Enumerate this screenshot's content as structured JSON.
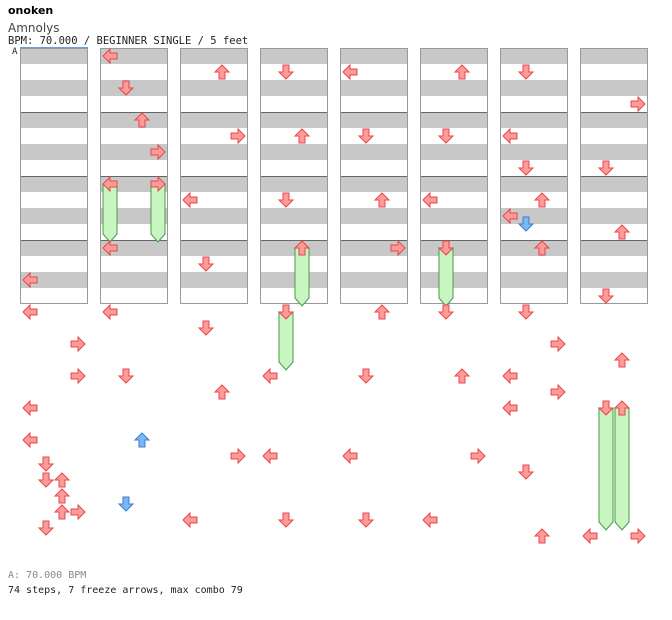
{
  "header": {
    "artist": "onoken",
    "title": "Amnolys",
    "info": "BPM: 70.000 / BEGINNER SINGLE / 5 feet",
    "bpm_marker_label": "A"
  },
  "footer": {
    "bpm_line": "A: 70.000 BPM",
    "stats": "74 steps, 7 freeze arrows, max combo 79"
  },
  "colors": {
    "stripe": "#c8c8c8",
    "border": "#999999",
    "arrow_red": "#ff9a9a",
    "arrow_red_stroke": "#e04848",
    "arrow_blue": "#7ab8f2",
    "arrow_blue_stroke": "#3c7cd0",
    "freeze_fill": "#c8f5c0",
    "freeze_stroke": "#4a9a4a"
  },
  "chart": {
    "columns": 8,
    "measures_per_column": 4,
    "lanes": [
      "left",
      "down",
      "up",
      "right"
    ],
    "arrows": [
      {
        "col": 0,
        "lane": "left",
        "beat": 14.5
      },
      {
        "col": 0,
        "lane": "left",
        "beat": 16.5
      },
      {
        "col": 0,
        "lane": "right",
        "beat": 18.5
      },
      {
        "col": 0,
        "lane": "right",
        "beat": 20.5
      },
      {
        "col": 0,
        "lane": "left",
        "beat": 22.5
      },
      {
        "col": 0,
        "lane": "left",
        "beat": 24.5
      },
      {
        "col": 0,
        "lane": "down",
        "beat": 26.0
      },
      {
        "col": 0,
        "lane": "down",
        "beat": 27.0
      },
      {
        "col": 0,
        "lane": "up",
        "beat": 27.0
      },
      {
        "col": 0,
        "lane": "up",
        "beat": 28.0
      },
      {
        "col": 0,
        "lane": "up",
        "beat": 29.0
      },
      {
        "col": 0,
        "lane": "right",
        "beat": 29.0
      },
      {
        "col": 0,
        "lane": "down",
        "beat": 30.0
      },
      {
        "col": 1,
        "lane": "left",
        "beat": 0.5
      },
      {
        "col": 1,
        "lane": "down",
        "beat": 2.5
      },
      {
        "col": 1,
        "lane": "up",
        "beat": 4.5
      },
      {
        "col": 1,
        "lane": "right",
        "beat": 6.5
      },
      {
        "col": 1,
        "lane": "left",
        "beat": 8.5
      },
      {
        "col": 1,
        "lane": "right",
        "beat": 8.5
      },
      {
        "col": 1,
        "lane": "left",
        "beat": 12.5
      },
      {
        "col": 1,
        "lane": "left",
        "beat": 16.5
      },
      {
        "col": 1,
        "lane": "down",
        "beat": 20.5
      },
      {
        "col": 1,
        "lane": "up",
        "beat": 24.5,
        "color": "blue"
      },
      {
        "col": 1,
        "lane": "down",
        "beat": 28.5,
        "color": "blue"
      },
      {
        "col": 2,
        "lane": "up",
        "beat": 1.5
      },
      {
        "col": 2,
        "lane": "right",
        "beat": 5.5
      },
      {
        "col": 2,
        "lane": "left",
        "beat": 9.5
      },
      {
        "col": 2,
        "lane": "down",
        "beat": 13.5
      },
      {
        "col": 2,
        "lane": "down",
        "beat": 17.5
      },
      {
        "col": 2,
        "lane": "up",
        "beat": 21.5
      },
      {
        "col": 2,
        "lane": "right",
        "beat": 25.5
      },
      {
        "col": 2,
        "lane": "left",
        "beat": 29.5
      },
      {
        "col": 3,
        "lane": "down",
        "beat": 1.5
      },
      {
        "col": 3,
        "lane": "up",
        "beat": 5.5
      },
      {
        "col": 3,
        "lane": "down",
        "beat": 9.5
      },
      {
        "col": 3,
        "lane": "up",
        "beat": 12.5
      },
      {
        "col": 3,
        "lane": "down",
        "beat": 16.5
      },
      {
        "col": 3,
        "lane": "left",
        "beat": 20.5
      },
      {
        "col": 3,
        "lane": "left",
        "beat": 25.5
      },
      {
        "col": 3,
        "lane": "down",
        "beat": 29.5
      },
      {
        "col": 4,
        "lane": "left",
        "beat": 1.5
      },
      {
        "col": 4,
        "lane": "down",
        "beat": 5.5
      },
      {
        "col": 4,
        "lane": "up",
        "beat": 9.5
      },
      {
        "col": 4,
        "lane": "right",
        "beat": 12.5
      },
      {
        "col": 4,
        "lane": "up",
        "beat": 16.5
      },
      {
        "col": 4,
        "lane": "down",
        "beat": 20.5
      },
      {
        "col": 4,
        "lane": "left",
        "beat": 25.5
      },
      {
        "col": 4,
        "lane": "down",
        "beat": 29.5
      },
      {
        "col": 5,
        "lane": "up",
        "beat": 1.5
      },
      {
        "col": 5,
        "lane": "down",
        "beat": 5.5
      },
      {
        "col": 5,
        "lane": "left",
        "beat": 9.5
      },
      {
        "col": 5,
        "lane": "down",
        "beat": 12.5
      },
      {
        "col": 5,
        "lane": "down",
        "beat": 16.5
      },
      {
        "col": 5,
        "lane": "up",
        "beat": 20.5
      },
      {
        "col": 5,
        "lane": "right",
        "beat": 25.5
      },
      {
        "col": 5,
        "lane": "left",
        "beat": 29.5
      },
      {
        "col": 6,
        "lane": "down",
        "beat": 1.5
      },
      {
        "col": 6,
        "lane": "left",
        "beat": 5.5
      },
      {
        "col": 6,
        "lane": "down",
        "beat": 7.5
      },
      {
        "col": 6,
        "lane": "up",
        "beat": 9.5
      },
      {
        "col": 6,
        "lane": "left",
        "beat": 10.5
      },
      {
        "col": 6,
        "lane": "down",
        "beat": 11.0,
        "color": "blue"
      },
      {
        "col": 6,
        "lane": "up",
        "beat": 12.5
      },
      {
        "col": 6,
        "lane": "down",
        "beat": 16.5
      },
      {
        "col": 6,
        "lane": "right",
        "beat": 18.5
      },
      {
        "col": 6,
        "lane": "left",
        "beat": 20.5
      },
      {
        "col": 6,
        "lane": "right",
        "beat": 21.5
      },
      {
        "col": 6,
        "lane": "left",
        "beat": 22.5
      },
      {
        "col": 6,
        "lane": "down",
        "beat": 26.5
      },
      {
        "col": 6,
        "lane": "up",
        "beat": 30.5
      },
      {
        "col": 7,
        "lane": "right",
        "beat": 3.5
      },
      {
        "col": 7,
        "lane": "down",
        "beat": 7.5
      },
      {
        "col": 7,
        "lane": "up",
        "beat": 11.5
      },
      {
        "col": 7,
        "lane": "down",
        "beat": 15.5
      },
      {
        "col": 7,
        "lane": "up",
        "beat": 19.5
      },
      {
        "col": 7,
        "lane": "down",
        "beat": 22.5
      },
      {
        "col": 7,
        "lane": "up",
        "beat": 22.5
      },
      {
        "col": 7,
        "lane": "left",
        "beat": 30.5
      },
      {
        "col": 7,
        "lane": "right",
        "beat": 30.5
      }
    ],
    "freezes": [
      {
        "col": 1,
        "lane": "left",
        "start": 8.5,
        "end": 12.0
      },
      {
        "col": 1,
        "lane": "right",
        "start": 8.5,
        "end": 12.0
      },
      {
        "col": 3,
        "lane": "up",
        "start": 12.5,
        "end": 16.0
      },
      {
        "col": 3,
        "lane": "down",
        "start": 16.5,
        "end": 20.0
      },
      {
        "col": 5,
        "lane": "down",
        "start": 12.5,
        "end": 16.0
      },
      {
        "col": 7,
        "lane": "down",
        "start": 22.5,
        "end": 30.0
      },
      {
        "col": 7,
        "lane": "up",
        "start": 22.5,
        "end": 30.0
      }
    ]
  }
}
